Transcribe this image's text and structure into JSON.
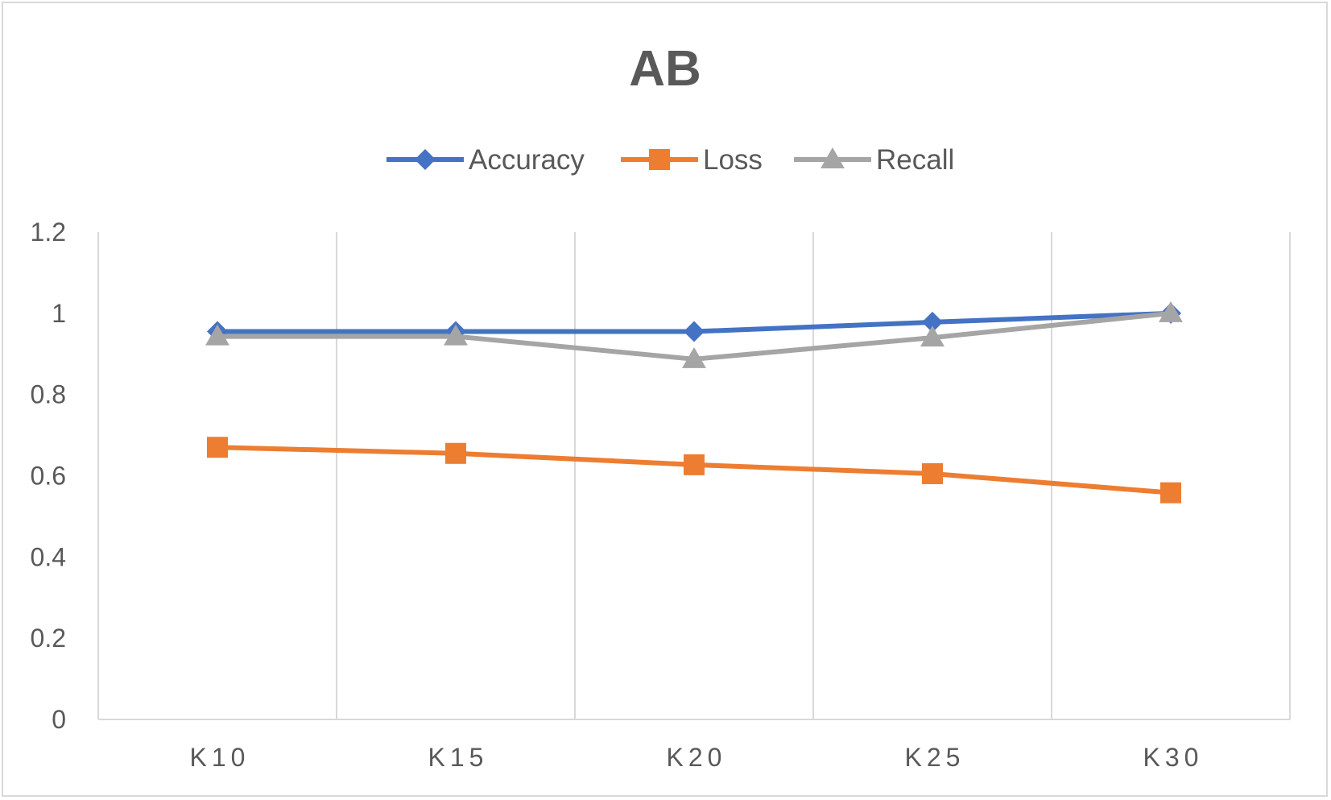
{
  "chart_data": {
    "type": "line",
    "title": "AB",
    "xlabel": "",
    "ylabel": "",
    "categories": [
      "K10",
      "K15",
      "K20",
      "K25",
      "K30"
    ],
    "ylim": [
      0,
      1.2
    ],
    "yticks": [
      "0",
      "0.2",
      "0.4",
      "0.6",
      "0.8",
      "1",
      "1.2"
    ],
    "grid": "vertical",
    "legend_position": "top",
    "series": [
      {
        "name": "Accuracy",
        "values": [
          0.955,
          0.955,
          0.955,
          0.978,
          1.0
        ],
        "color": "#4472c4",
        "marker": "diamond"
      },
      {
        "name": "Loss",
        "values": [
          0.67,
          0.655,
          0.627,
          0.605,
          0.558
        ],
        "color": "#ed7d31",
        "marker": "square"
      },
      {
        "name": "Recall",
        "values": [
          0.943,
          0.943,
          0.887,
          0.94,
          1.0
        ],
        "color": "#a5a5a5",
        "marker": "triangle"
      }
    ]
  }
}
